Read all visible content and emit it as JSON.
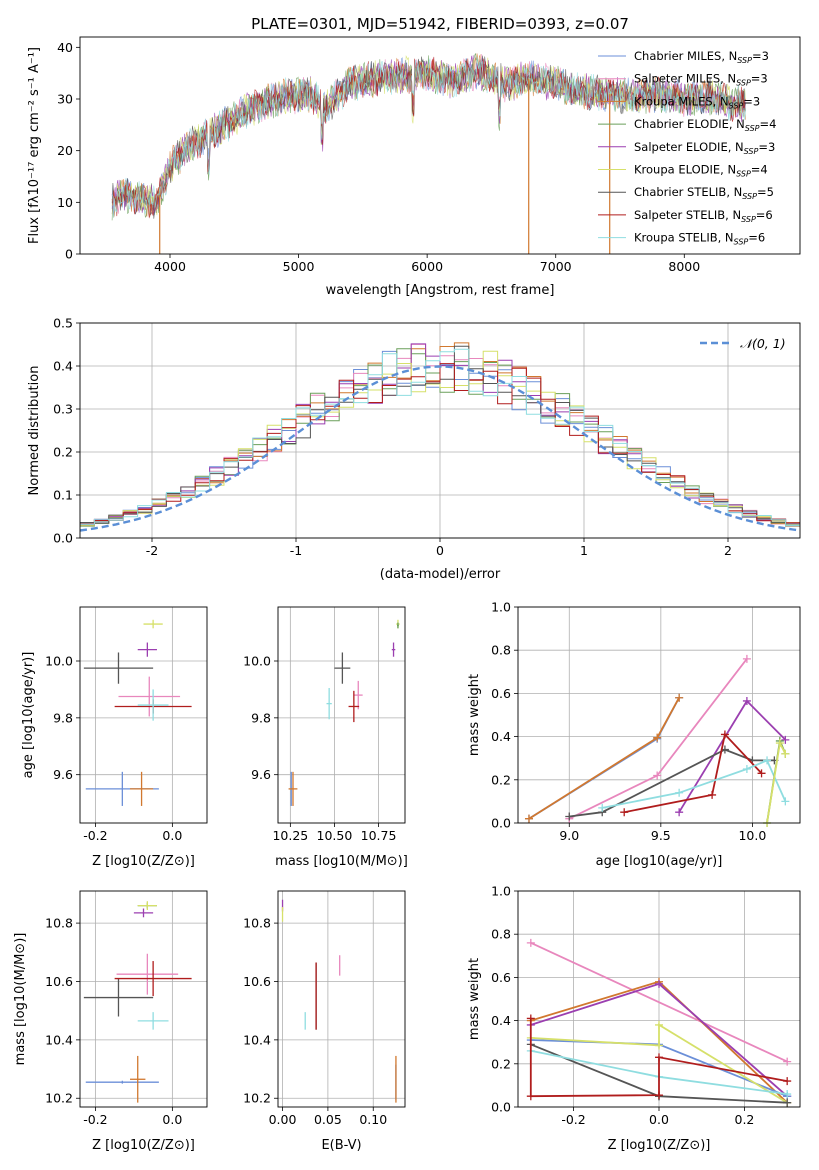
{
  "figure": {
    "title": "PLATE=0301, MJD=51942, FIBERID=0393, z=0.07"
  },
  "chart_data": [
    {
      "id": "spectrum",
      "type": "line",
      "xlabel": "wavelength [Angstrom, rest frame]",
      "ylabel": "Flux [fλ10⁻¹⁷ erg cm⁻² s⁻¹ A⁻¹]",
      "xlim": [
        3300,
        8900
      ],
      "ylim": [
        0,
        42
      ],
      "xticks": [
        4000,
        5000,
        6000,
        7000,
        8000
      ],
      "yticks": [
        0,
        10,
        20,
        30,
        40
      ],
      "grid": false,
      "legend_position": "top-right",
      "continuum": {
        "x": [
          3550,
          3650,
          3750,
          3900,
          4000,
          4150,
          4300,
          4500,
          4700,
          4900,
          5100,
          5200,
          5400,
          5600,
          5800,
          6000,
          6200,
          6400,
          6600,
          6800,
          7000,
          7200,
          7400,
          7600,
          7800,
          8000,
          8200,
          8400
        ],
        "y": [
          10,
          11.5,
          11,
          10,
          17,
          21,
          23,
          26,
          29,
          30.5,
          31,
          28,
          33,
          34,
          34.5,
          35,
          33.5,
          35.5,
          33,
          34,
          33,
          31.5,
          31,
          30.5,
          31,
          30,
          30.5,
          29
        ]
      },
      "series": [
        {
          "name": "Chabrier MILES, N_SSP=3",
          "color": "#6b8fd8"
        },
        {
          "name": "Salpeter MILES, N_SSP=3",
          "color": "#e887bd"
        },
        {
          "name": "Kroupa MILES, N_SSP=3",
          "color": "#d1782f"
        },
        {
          "name": "Chabrier ELODIE, N_SSP=4",
          "color": "#6a9f5a"
        },
        {
          "name": "Salpeter ELODIE, N_SSP=3",
          "color": "#9b3fb0"
        },
        {
          "name": "Kroupa ELODIE, N_SSP=4",
          "color": "#d6e06a"
        },
        {
          "name": "Chabrier STELIB, N_SSP=5",
          "color": "#555555"
        },
        {
          "name": "Salpeter STELIB, N_SSP=6",
          "color": "#b01d1d"
        },
        {
          "name": "Kroupa STELIB, N_SSP=6",
          "color": "#8fdde0"
        }
      ]
    },
    {
      "id": "residuals",
      "type": "bar",
      "xlabel": "(data-model)/error",
      "ylabel": "Normed distribution",
      "xlim": [
        -2.5,
        2.5
      ],
      "ylim": [
        0,
        0.5
      ],
      "xticks": [
        -2,
        -1,
        0,
        1,
        2
      ],
      "yticks": [
        0.0,
        0.1,
        0.2,
        0.3,
        0.4,
        0.5
      ],
      "grid": true,
      "legend_position": "top-right",
      "reference_curve": {
        "name": "N(0,1)",
        "color": "#5b8fd6",
        "style": "dashed"
      },
      "bins": {
        "start": -2.5,
        "width": 0.1
      }
    },
    {
      "id": "age-vs-Z",
      "type": "scatter",
      "xlabel": "Z [log10(Z/Z⊙)]",
      "ylabel": "age  [log10(age/yr)]",
      "xlim": [
        -0.24,
        0.09
      ],
      "ylim": [
        9.43,
        10.19
      ],
      "xticks": [
        -0.2,
        0.0
      ],
      "yticks": [
        9.6,
        9.8,
        10.0
      ],
      "grid": true,
      "points": [
        {
          "color": "#6b8fd8",
          "x": -0.13,
          "y": 9.55,
          "xerr": 0.095,
          "yerr": 0.06
        },
        {
          "color": "#d1782f",
          "x": -0.08,
          "y": 9.55,
          "xerr": 0.03,
          "yerr": 0.06
        },
        {
          "color": "#555555",
          "x": -0.14,
          "y": 9.975,
          "xerr": 0.09,
          "yerr": 0.055
        },
        {
          "color": "#e887bd",
          "x": -0.06,
          "y": 9.875,
          "xerr": 0.08,
          "yerr": 0.07
        },
        {
          "color": "#b01d1d",
          "x": -0.05,
          "y": 9.84,
          "xerr": 0.1,
          "yerr": 0.025
        },
        {
          "color": "#8fdde0",
          "x": -0.05,
          "y": 9.845,
          "xerr": 0.04,
          "yerr": 0.055
        },
        {
          "color": "#9b3fb0",
          "x": -0.065,
          "y": 10.04,
          "xerr": 0.025,
          "yerr": 0.025
        },
        {
          "color": "#d6e06a",
          "x": -0.05,
          "y": 10.13,
          "xerr": 0.025,
          "yerr": 0.015
        }
      ]
    },
    {
      "id": "age-vs-mass",
      "type": "scatter",
      "xlabel": "mass [log10(M/M⊙)]",
      "ylabel": "",
      "xlim": [
        10.18,
        10.9
      ],
      "ylim": [
        9.43,
        10.19
      ],
      "xticks": [
        10.25,
        10.5,
        10.75
      ],
      "yticks": [
        9.6,
        9.8,
        10.0
      ],
      "grid": true,
      "points": [
        {
          "color": "#6b8fd8",
          "x": 10.255,
          "y": 9.55,
          "xerr": 0.005,
          "yerr": 0.06
        },
        {
          "color": "#d1782f",
          "x": 10.265,
          "y": 9.55,
          "xerr": 0.025,
          "yerr": 0.06
        },
        {
          "color": "#555555",
          "x": 10.545,
          "y": 9.975,
          "xerr": 0.045,
          "yerr": 0.055
        },
        {
          "color": "#8fdde0",
          "x": 10.47,
          "y": 9.85,
          "xerr": 0.015,
          "yerr": 0.055
        },
        {
          "color": "#e887bd",
          "x": 10.635,
          "y": 9.88,
          "xerr": 0.025,
          "yerr": 0.05
        },
        {
          "color": "#b01d1d",
          "x": 10.61,
          "y": 9.84,
          "xerr": 0.03,
          "yerr": 0.055
        },
        {
          "color": "#9b3fb0",
          "x": 10.835,
          "y": 10.04,
          "xerr": 0.01,
          "yerr": 0.025
        },
        {
          "color": "#d6e06a",
          "x": 10.86,
          "y": 10.13,
          "xerr": 0.01,
          "yerr": 0.015
        },
        {
          "color": "#6a9f5a",
          "x": 10.86,
          "y": 10.125,
          "xerr": 0.005,
          "yerr": 0.01
        }
      ]
    },
    {
      "id": "mass-weight-vs-age",
      "type": "line",
      "xlabel": "age  [log10(age/yr)]",
      "ylabel": "mass weight",
      "xlim": [
        8.72,
        10.26
      ],
      "ylim": [
        0,
        1.0
      ],
      "xticks": [
        9.0,
        9.5,
        10.0
      ],
      "yticks": [
        0.0,
        0.2,
        0.4,
        0.6,
        0.8,
        1.0
      ],
      "grid": true,
      "series": [
        {
          "color": "#6b8fd8",
          "x": [
            8.78,
            9.48,
            9.6
          ],
          "y": [
            0.02,
            0.39,
            0.58
          ]
        },
        {
          "color": "#d1782f",
          "x": [
            8.78,
            9.48,
            9.6
          ],
          "y": [
            0.02,
            0.395,
            0.58
          ]
        },
        {
          "color": "#e887bd",
          "x": [
            9.0,
            9.48,
            9.97
          ],
          "y": [
            0.02,
            0.22,
            0.76
          ]
        },
        {
          "color": "#9b3fb0",
          "x": [
            9.6,
            9.97,
            10.18
          ],
          "y": [
            0.05,
            0.565,
            0.385
          ]
        },
        {
          "color": "#555555",
          "x": [
            9.0,
            9.18,
            9.85,
            10.0,
            10.12
          ],
          "y": [
            0.03,
            0.05,
            0.34,
            0.29,
            0.29
          ]
        },
        {
          "color": "#b01d1d",
          "x": [
            9.3,
            9.78,
            9.85,
            10.05
          ],
          "y": [
            0.05,
            0.13,
            0.41,
            0.23
          ]
        },
        {
          "color": "#8fdde0",
          "x": [
            9.18,
            9.6,
            9.97,
            10.08,
            10.18
          ],
          "y": [
            0.07,
            0.14,
            0.25,
            0.29,
            0.1
          ]
        },
        {
          "color": "#6a9f5a",
          "x": [
            10.08,
            10.15,
            10.18
          ],
          "y": [
            0.0,
            0.38,
            0.32
          ]
        },
        {
          "color": "#d6e06a",
          "x": [
            10.08,
            10.15,
            10.18
          ],
          "y": [
            0.0,
            0.37,
            0.32
          ]
        }
      ]
    },
    {
      "id": "mass-vs-Z",
      "type": "scatter",
      "xlabel": "Z [log10(Z/Z⊙)]",
      "ylabel": "mass [log10(M/M⊙)]",
      "xlim": [
        -0.24,
        0.09
      ],
      "ylim": [
        10.17,
        10.91
      ],
      "xticks": [
        -0.2,
        0.0
      ],
      "yticks": [
        10.2,
        10.4,
        10.6,
        10.8
      ],
      "grid": true,
      "points": [
        {
          "color": "#6b8fd8",
          "x": -0.13,
          "y": 10.255,
          "xerr": 0.095,
          "yerr": 0.005
        },
        {
          "color": "#d1782f",
          "x": -0.09,
          "y": 10.265,
          "xerr": 0.02,
          "yerr": 0.08
        },
        {
          "color": "#555555",
          "x": -0.14,
          "y": 10.545,
          "xerr": 0.09,
          "yerr": 0.065
        },
        {
          "color": "#8fdde0",
          "x": -0.05,
          "y": 10.465,
          "xerr": 0.04,
          "yerr": 0.03
        },
        {
          "color": "#e887bd",
          "x": -0.065,
          "y": 10.625,
          "xerr": 0.08,
          "yerr": 0.07
        },
        {
          "color": "#b01d1d",
          "x": -0.05,
          "y": 10.61,
          "xerr": 0.1,
          "yerr": 0.06
        },
        {
          "color": "#9b3fb0",
          "x": -0.075,
          "y": 10.835,
          "xerr": 0.025,
          "yerr": 0.015
        },
        {
          "color": "#6a9f5a",
          "x": -0.065,
          "y": 10.86,
          "xerr": 0.025,
          "yerr": 0.01
        },
        {
          "color": "#d6e06a",
          "x": -0.065,
          "y": 10.86,
          "xerr": 0.025,
          "yerr": 0.015
        }
      ]
    },
    {
      "id": "mass-vs-EBV",
      "type": "scatter",
      "xlabel": "E(B-V)",
      "ylabel": "",
      "xlim": [
        -0.005,
        0.135
      ],
      "ylim": [
        10.17,
        10.91
      ],
      "xticks": [
        0.0,
        0.05,
        0.1
      ],
      "yticks": [
        10.2,
        10.4,
        10.6,
        10.8
      ],
      "grid": true,
      "points": [
        {
          "color": "#6b8fd8",
          "x": 0.125,
          "y": 10.255,
          "xerr": 0,
          "yerr": 0.06
        },
        {
          "color": "#d1782f",
          "x": 0.125,
          "y": 10.265,
          "xerr": 0,
          "yerr": 0.08
        },
        {
          "color": "#555555",
          "x": 0.037,
          "y": 10.55,
          "xerr": 0,
          "yerr": 0.115
        },
        {
          "color": "#b01d1d",
          "x": 0.037,
          "y": 10.55,
          "xerr": 0,
          "yerr": 0.115
        },
        {
          "color": "#8fdde0",
          "x": 0.025,
          "y": 10.465,
          "xerr": 0,
          "yerr": 0.03
        },
        {
          "color": "#e887bd",
          "x": 0.063,
          "y": 10.655,
          "xerr": 0,
          "yerr": 0.035
        },
        {
          "color": "#9b3fb0",
          "x": 0.0,
          "y": 10.86,
          "xerr": 0,
          "yerr": 0.02
        },
        {
          "color": "#d6e06a",
          "x": 0.0,
          "y": 10.83,
          "xerr": 0,
          "yerr": 0.025
        }
      ]
    },
    {
      "id": "mass-weight-vs-Z",
      "type": "line",
      "xlabel": "Z [log10(Z/Z⊙)]",
      "ylabel": "mass weight",
      "xlim": [
        -0.33,
        0.33
      ],
      "ylim": [
        0,
        1.0
      ],
      "xticks": [
        -0.2,
        0.0,
        0.2
      ],
      "yticks": [
        0.0,
        0.2,
        0.4,
        0.6,
        0.8,
        1.0
      ],
      "grid": true,
      "series": [
        {
          "color": "#e887bd",
          "x": [
            -0.3,
            0.3
          ],
          "y": [
            0.76,
            0.21
          ]
        },
        {
          "color": "#d1782f",
          "x": [
            -0.3,
            0.0,
            0.3
          ],
          "y": [
            0.4,
            0.58,
            0.02
          ]
        },
        {
          "color": "#9b3fb0",
          "x": [
            -0.3,
            0.0,
            0.3
          ],
          "y": [
            0.38,
            0.57,
            0.05
          ]
        },
        {
          "color": "#6b8fd8",
          "x": [
            -0.3,
            0.0,
            0.3
          ],
          "y": [
            0.31,
            0.29,
            0.05
          ]
        },
        {
          "color": "#d6e06a",
          "x": [
            -0.3,
            0.0,
            0.0,
            0.3
          ],
          "y": [
            0.32,
            0.285,
            0.38,
            0.02
          ]
        },
        {
          "color": "#555555",
          "x": [
            -0.3,
            0.0,
            0.0,
            0.3
          ],
          "y": [
            0.29,
            0.05,
            0.05,
            0.02
          ]
        },
        {
          "color": "#8fdde0",
          "x": [
            -0.3,
            0.0,
            0.3
          ],
          "y": [
            0.26,
            0.14,
            0.06
          ]
        },
        {
          "color": "#b01d1d",
          "x": [
            -0.3,
            -0.3,
            0.0,
            0.0,
            0.3
          ],
          "y": [
            0.41,
            0.05,
            0.055,
            0.23,
            0.12
          ]
        }
      ]
    }
  ]
}
